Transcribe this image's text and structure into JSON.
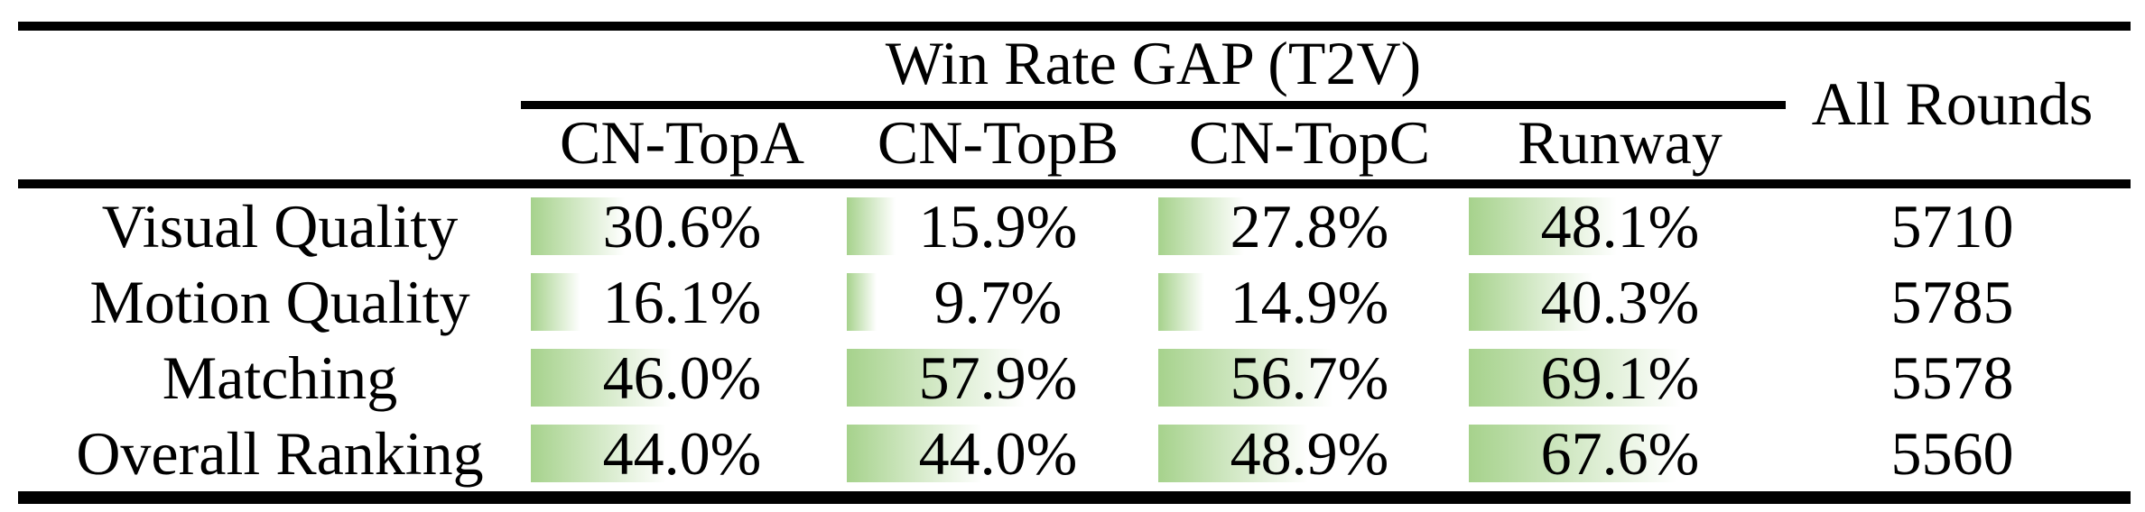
{
  "header": {
    "title": "Win Rate GAP (T2V)",
    "columns": [
      "CN-TopA",
      "CN-TopB",
      "CN-TopC",
      "Runway"
    ],
    "all_rounds": "All Rounds"
  },
  "rows": [
    {
      "label": "Visual Quality",
      "values": [
        "30.6%",
        "15.9%",
        "27.8%",
        "48.1%"
      ],
      "win_rates": [
        30.6,
        15.9,
        27.8,
        48.1
      ],
      "rounds": "5710"
    },
    {
      "label": "Motion Quality",
      "values": [
        "16.1%",
        "9.7%",
        "14.9%",
        "40.3%"
      ],
      "win_rates": [
        16.1,
        9.7,
        14.9,
        40.3
      ],
      "rounds": "5785"
    },
    {
      "label": "Matching",
      "values": [
        "46.0%",
        "57.9%",
        "56.7%",
        "69.1%"
      ],
      "win_rates": [
        46.0,
        57.9,
        56.7,
        69.1
      ],
      "rounds": "5578"
    },
    {
      "label": "Overall Ranking",
      "values": [
        "44.0%",
        "44.0%",
        "48.9%",
        "67.6%"
      ],
      "win_rates": [
        44.0,
        44.0,
        48.9,
        67.6
      ],
      "rounds": "5560"
    }
  ],
  "styles": {
    "bar_color_start": "#a6d28c",
    "bar_color_end": "#ffffff",
    "rule_color": "#000000",
    "text_color": "#000000"
  },
  "chart_data": {
    "type": "table",
    "title": "Win Rate GAP (T2V)",
    "columns": [
      "CN-TopA",
      "CN-TopB",
      "CN-TopC",
      "Runway",
      "All Rounds"
    ],
    "row_labels": [
      "Visual Quality",
      "Motion Quality",
      "Matching",
      "Overall Ranking"
    ],
    "series": [
      {
        "name": "CN-TopA",
        "values": [
          30.6,
          16.1,
          46.0,
          44.0
        ]
      },
      {
        "name": "CN-TopB",
        "values": [
          15.9,
          9.7,
          57.9,
          44.0
        ]
      },
      {
        "name": "CN-TopC",
        "values": [
          27.8,
          14.9,
          56.7,
          48.9
        ]
      },
      {
        "name": "Runway",
        "values": [
          48.1,
          40.3,
          69.1,
          67.6
        ]
      }
    ],
    "all_rounds": [
      5710,
      5785,
      5578,
      5560
    ],
    "unit": "percent",
    "bar_range": [
      0,
      69.1
    ],
    "notes": "In-cell green gradient data bars, length proportional to win-rate gap"
  }
}
